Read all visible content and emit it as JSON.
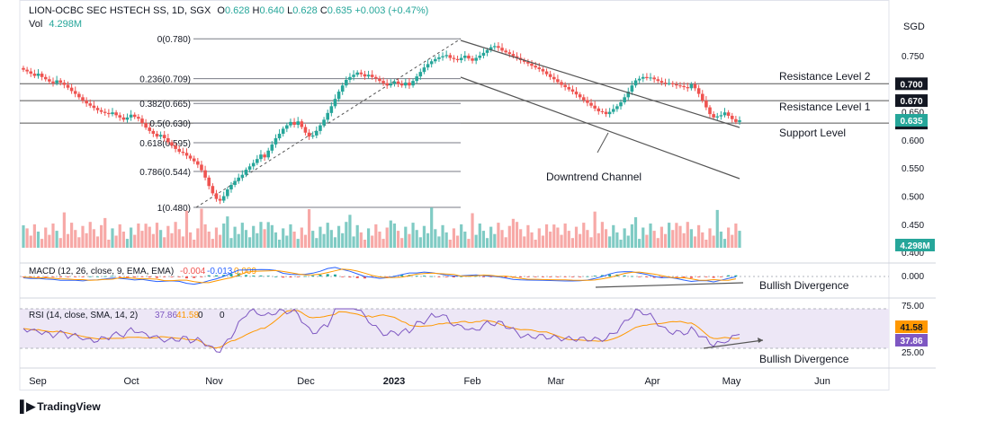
{
  "header": {
    "symbol": "LION-OCBC SEC HSTECH SS, 1D, SGX",
    "o_label": "O",
    "o_value": "0.628",
    "h_label": "H",
    "h_value": "0.640",
    "l_label": "L",
    "l_value": "0.628",
    "c_label": "C",
    "c_value": "0.635",
    "change": "+0.003 (+0.47%)",
    "vol_label": "Vol",
    "vol_value": "4.298M",
    "currency": "SGD"
  },
  "branding": {
    "logo_text": "TradingView"
  },
  "colors": {
    "up": "#26a69a",
    "down": "#ef5350",
    "vol_up": "#80cbc4",
    "vol_down": "#f7a9a7",
    "macd": "#2962ff",
    "signal": "#ff9800",
    "rsi": "#7e57c2",
    "rsi_sma": "#ff9800",
    "rsi_band": "#ede7f6",
    "line": "#555555"
  },
  "chart_data": [
    {
      "type": "candlestick",
      "title": "LION-OCBC SEC HSTECH SS, 1D, SGX",
      "x_ticks": [
        "Sep",
        "Oct",
        "Nov",
        "Dec",
        "2023",
        "Feb",
        "Mar",
        "Apr",
        "May",
        "Jun"
      ],
      "y_ticks": [
        "0.750",
        "0.700",
        "0.650",
        "0.600",
        "0.550",
        "0.500",
        "0.450",
        "0.400"
      ],
      "ylim": [
        0.4,
        0.78
      ],
      "fibonacci": [
        {
          "label": "0(0.780)",
          "value": 0.78
        },
        {
          "label": "0.236(0.709)",
          "value": 0.709
        },
        {
          "label": "0.382(0.665)",
          "value": 0.665
        },
        {
          "label": "0.5(0.630)",
          "value": 0.63
        },
        {
          "label": "0.618(0.595)",
          "value": 0.595
        },
        {
          "label": "0.786(0.544)",
          "value": 0.544
        },
        {
          "label": "1(0.480)",
          "value": 0.48
        }
      ],
      "levels": [
        {
          "label": "Resistance Level 2",
          "value": 0.7,
          "badge": "0.700"
        },
        {
          "label": "Resistance Level 1",
          "value": 0.67,
          "badge": "0.670"
        },
        {
          "label": "Support Level",
          "value": 0.63,
          "badge": "0.630"
        }
      ],
      "last_price_badge": "0.635",
      "volume_badge": "4.298M",
      "annotation": "Downtrend Channel",
      "close": [
        0.725,
        0.722,
        0.718,
        0.714,
        0.718,
        0.712,
        0.708,
        0.704,
        0.701,
        0.706,
        0.702,
        0.698,
        0.693,
        0.687,
        0.682,
        0.676,
        0.67,
        0.665,
        0.661,
        0.657,
        0.653,
        0.65,
        0.648,
        0.646,
        0.649,
        0.644,
        0.64,
        0.636,
        0.64,
        0.645,
        0.641,
        0.638,
        0.63,
        0.622,
        0.616,
        0.611,
        0.606,
        0.609,
        0.603,
        0.596,
        0.59,
        0.584,
        0.579,
        0.577,
        0.572,
        0.567,
        0.562,
        0.556,
        0.546,
        0.533,
        0.518,
        0.505,
        0.495,
        0.492,
        0.5,
        0.512,
        0.52,
        0.527,
        0.533,
        0.538,
        0.547,
        0.553,
        0.559,
        0.566,
        0.574,
        0.569,
        0.581,
        0.592,
        0.603,
        0.611,
        0.62,
        0.626,
        0.632,
        0.627,
        0.633,
        0.623,
        0.613,
        0.606,
        0.608,
        0.616,
        0.626,
        0.636,
        0.648,
        0.66,
        0.673,
        0.686,
        0.697,
        0.707,
        0.712,
        0.716,
        0.72,
        0.717,
        0.713,
        0.716,
        0.712,
        0.709,
        0.705,
        0.701,
        0.697,
        0.7,
        0.704,
        0.7,
        0.697,
        0.702,
        0.697,
        0.705,
        0.713,
        0.721,
        0.729,
        0.735,
        0.74,
        0.744,
        0.747,
        0.749,
        0.751,
        0.746,
        0.744,
        0.742,
        0.746,
        0.75,
        0.745,
        0.741,
        0.746,
        0.75,
        0.755,
        0.76,
        0.765,
        0.767,
        0.764,
        0.759,
        0.756,
        0.753,
        0.749,
        0.746,
        0.742,
        0.739,
        0.736,
        0.732,
        0.729,
        0.726,
        0.722,
        0.717,
        0.712,
        0.708,
        0.703,
        0.698,
        0.694,
        0.69,
        0.686,
        0.681,
        0.676,
        0.671,
        0.666,
        0.661,
        0.656,
        0.651,
        0.65,
        0.646,
        0.65,
        0.655,
        0.66,
        0.667,
        0.676,
        0.686,
        0.697,
        0.706,
        0.709,
        0.712,
        0.71,
        0.711,
        0.708,
        0.705,
        0.702,
        0.701,
        0.701,
        0.699,
        0.697,
        0.696,
        0.694,
        0.692,
        0.699,
        0.692,
        0.682,
        0.67,
        0.658,
        0.646,
        0.64,
        0.642,
        0.644,
        0.649,
        0.643,
        0.637,
        0.632,
        0.635
      ]
    },
    {
      "type": "line",
      "title": "MACD (12, 26, close, 9, EMA, EMA)",
      "values_label": [
        "-0.004",
        "-0.013",
        "0.009"
      ],
      "y_ticks": [
        "0.000"
      ],
      "annotation": "Bullish Divergence"
    },
    {
      "type": "line",
      "title": "RSI (14, close, SMA, 14, 2)",
      "values_label": [
        "37.86",
        "41.58",
        "0",
        "0"
      ],
      "y_ticks": [
        "75.00",
        "25.00"
      ],
      "rsi_badge": "37.86",
      "sma_badge": "41.58",
      "annotation": "Bullish Divergence"
    }
  ]
}
